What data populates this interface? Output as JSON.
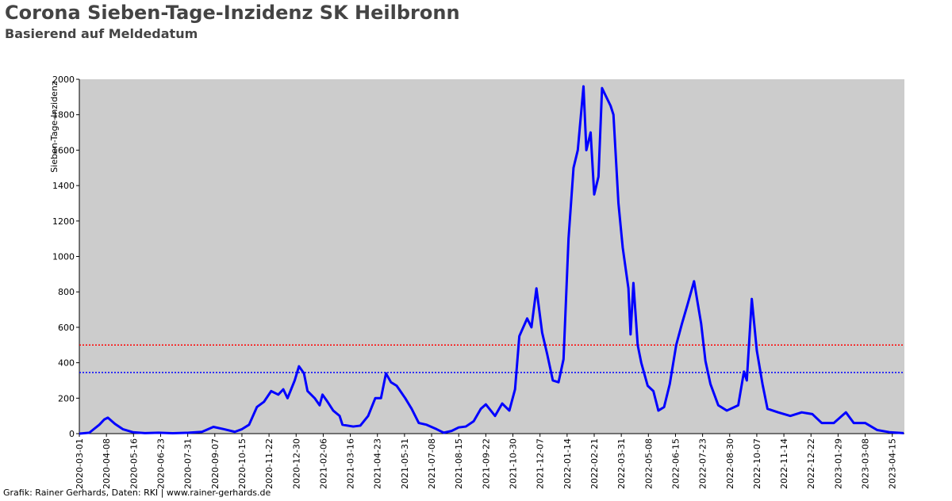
{
  "chart_data": {
    "type": "line",
    "title": "Corona Sieben-Tage-Inzidenz SK Heilbronn",
    "subtitle": "Basierend auf Meldedatum",
    "y_label": "Sieben-Tage-Inzidenz",
    "footer": "Grafik: Rainer Gerhards, Daten: RKI | www.rainer-gerhards.de",
    "background": "#cccccc",
    "xlim": [
      "2020-03-01",
      "2023-05-02"
    ],
    "xticks": [
      "2020-03-01",
      "2020-04-08",
      "2020-05-16",
      "2020-06-23",
      "2020-07-31",
      "2020-09-07",
      "2020-10-15",
      "2020-11-22",
      "2020-12-30",
      "2021-02-06",
      "2021-03-16",
      "2021-04-23",
      "2021-05-31",
      "2021-07-08",
      "2021-08-15",
      "2021-09-22",
      "2021-10-30",
      "2021-12-07",
      "2022-01-14",
      "2022-02-21",
      "2022-03-31",
      "2022-05-08",
      "2022-06-15",
      "2022-07-23",
      "2022-08-30",
      "2022-10-07",
      "2022-11-14",
      "2022-12-22",
      "2023-01-29",
      "2023-03-08",
      "2023-04-15"
    ],
    "ylim": [
      0,
      2000
    ],
    "yticks": [
      0,
      200,
      400,
      600,
      800,
      1000,
      1200,
      1400,
      1600,
      1800,
      2000
    ],
    "reference_lines": [
      {
        "value": 500,
        "color": "#ff0000"
      },
      {
        "value": 345,
        "color": "#0000ff"
      }
    ],
    "x": [
      "2020-03-01",
      "2020-03-15",
      "2020-03-29",
      "2020-04-05",
      "2020-04-10",
      "2020-04-20",
      "2020-05-01",
      "2020-05-15",
      "2020-06-01",
      "2020-06-20",
      "2020-07-10",
      "2020-08-01",
      "2020-08-20",
      "2020-09-05",
      "2020-09-20",
      "2020-10-05",
      "2020-10-15",
      "2020-10-25",
      "2020-11-05",
      "2020-11-15",
      "2020-11-25",
      "2020-12-05",
      "2020-12-12",
      "2020-12-18",
      "2020-12-28",
      "2021-01-03",
      "2021-01-10",
      "2021-01-15",
      "2021-01-25",
      "2021-02-01",
      "2021-02-05",
      "2021-02-12",
      "2021-02-20",
      "2021-03-01",
      "2021-03-05",
      "2021-03-20",
      "2021-03-30",
      "2021-04-10",
      "2021-04-20",
      "2021-04-28",
      "2021-05-05",
      "2021-05-12",
      "2021-05-20",
      "2021-06-01",
      "2021-06-10",
      "2021-06-20",
      "2021-07-01",
      "2021-07-15",
      "2021-07-25",
      "2021-08-05",
      "2021-08-15",
      "2021-08-25",
      "2021-09-05",
      "2021-09-15",
      "2021-09-22",
      "2021-10-05",
      "2021-10-15",
      "2021-10-25",
      "2021-11-02",
      "2021-11-08",
      "2021-11-19",
      "2021-11-25",
      "2021-12-02",
      "2021-12-10",
      "2021-12-17",
      "2021-12-25",
      "2022-01-02",
      "2022-01-09",
      "2022-01-16",
      "2022-01-23",
      "2022-01-29",
      "2022-02-06",
      "2022-02-10",
      "2022-02-16",
      "2022-02-21",
      "2022-02-27",
      "2022-03-04",
      "2022-03-10",
      "2022-03-16",
      "2022-03-20",
      "2022-03-27",
      "2022-04-02",
      "2022-04-10",
      "2022-04-13",
      "2022-04-17",
      "2022-04-23",
      "2022-04-28",
      "2022-05-07",
      "2022-05-15",
      "2022-05-22",
      "2022-05-30",
      "2022-06-07",
      "2022-06-16",
      "2022-06-24",
      "2022-07-02",
      "2022-07-11",
      "2022-07-21",
      "2022-07-27",
      "2022-08-03",
      "2022-08-14",
      "2022-08-26",
      "2022-09-11",
      "2022-09-19",
      "2022-09-23",
      "2022-09-30",
      "2022-10-07",
      "2022-10-15",
      "2022-10-22",
      "2022-11-06",
      "2022-11-23",
      "2022-12-09",
      "2022-12-24",
      "2023-01-06",
      "2023-01-23",
      "2023-02-09",
      "2023-02-20",
      "2023-03-08",
      "2023-03-25",
      "2023-04-11",
      "2023-05-01"
    ],
    "series": [
      {
        "name": "Sieben-Tage-Inzidenz",
        "color": "#0000ff",
        "values": [
          0,
          5,
          50,
          80,
          90,
          55,
          25,
          8,
          3,
          5,
          2,
          5,
          10,
          38,
          25,
          10,
          25,
          50,
          150,
          180,
          240,
          220,
          250,
          200,
          300,
          380,
          340,
          240,
          200,
          160,
          220,
          180,
          130,
          100,
          50,
          40,
          45,
          100,
          200,
          200,
          340,
          290,
          270,
          200,
          140,
          60,
          50,
          25,
          5,
          15,
          35,
          40,
          70,
          140,
          165,
          100,
          170,
          130,
          250,
          550,
          650,
          600,
          820,
          570,
          450,
          300,
          290,
          420,
          1100,
          1500,
          1600,
          1960,
          1600,
          1700,
          1350,
          1450,
          1950,
          1900,
          1850,
          1800,
          1300,
          1050,
          820,
          560,
          850,
          500,
          400,
          270,
          240,
          130,
          150,
          280,
          500,
          620,
          730,
          860,
          620,
          410,
          280,
          160,
          130,
          160,
          350,
          300,
          760,
          470,
          280,
          140,
          120,
          100,
          120,
          110,
          60,
          60,
          120,
          60,
          60,
          20,
          8,
          3
        ]
      }
    ]
  }
}
